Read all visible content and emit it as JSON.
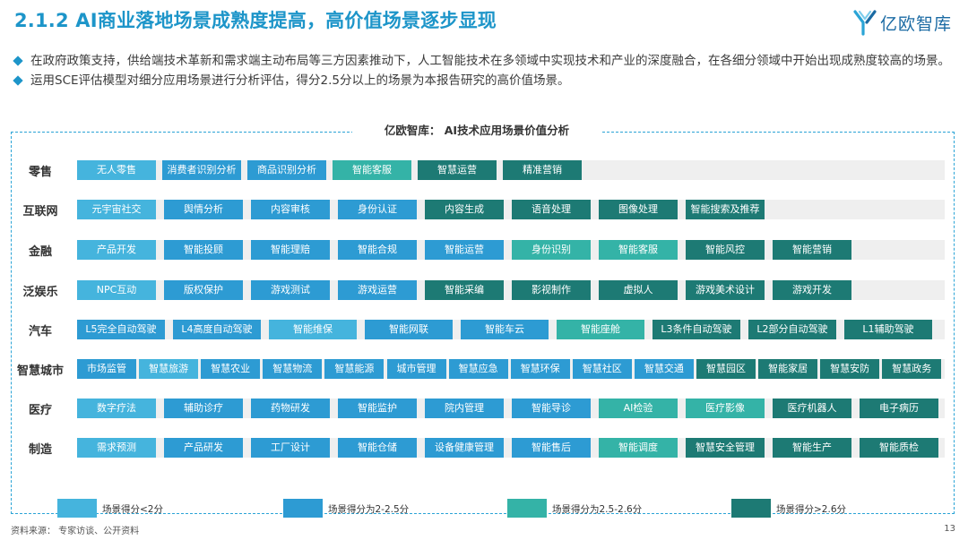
{
  "header": {
    "title": "2.1.2 AI商业落地场景成熟度提高，高价值场景逐步显现",
    "logo_text": "亿欧智库"
  },
  "bullets": [
    "在政府政策支持，供给端技术革新和需求端主动布局等三方因素推动下，人工智能技术在多领域中实现技术和产业的深度融合，在各细分领域中开始出现成熟度较高的场景。",
    "运用SCE评估模型对细分应用场景进行分析评估，得分2.5分以上的场景为本报告研究的高价值场景。"
  ],
  "chart_title": "亿欧智库：  AI技术应用场景价值分析",
  "colors": {
    "t1": "#45b4dd",
    "t2": "#2d9bd3",
    "t3": "#34b3a7",
    "t4": "#1d7a74",
    "accent": "#1d95c9"
  },
  "legend": [
    {
      "label": "场景得分<2分",
      "tier": "t1"
    },
    {
      "label": "场景得分为2-2.5分",
      "tier": "t2"
    },
    {
      "label": "场景得分为2.5-2.6分",
      "tier": "t3"
    },
    {
      "label": "场景得分>2.6分",
      "tier": "t4"
    }
  ],
  "rows": [
    {
      "label": "零售",
      "items": [
        {
          "text": "无人零售",
          "tier": "t1"
        },
        {
          "text": "消费者识别分析",
          "tier": "t2"
        },
        {
          "text": "商品识别分析",
          "tier": "t2"
        },
        {
          "text": "智能客服",
          "tier": "t3"
        },
        {
          "text": "智慧运营",
          "tier": "t4"
        },
        {
          "text": "精准营销",
          "tier": "t4"
        }
      ]
    },
    {
      "label": "互联网",
      "items": [
        {
          "text": "元宇宙社交",
          "tier": "t1"
        },
        {
          "text": "舆情分析",
          "tier": "t2"
        },
        {
          "text": "内容审核",
          "tier": "t2"
        },
        {
          "text": "身份认证",
          "tier": "t2"
        },
        {
          "text": "内容生成",
          "tier": "t4"
        },
        {
          "text": "语音处理",
          "tier": "t4"
        },
        {
          "text": "图像处理",
          "tier": "t4"
        },
        {
          "text": "智能搜索及推荐",
          "tier": "t4"
        }
      ]
    },
    {
      "label": "金融",
      "items": [
        {
          "text": "产品开发",
          "tier": "t1"
        },
        {
          "text": "智能投顾",
          "tier": "t2"
        },
        {
          "text": "智能理赔",
          "tier": "t2"
        },
        {
          "text": "智能合规",
          "tier": "t2"
        },
        {
          "text": "智能运营",
          "tier": "t2"
        },
        {
          "text": "身份识别",
          "tier": "t3"
        },
        {
          "text": "智能客服",
          "tier": "t3"
        },
        {
          "text": "智能风控",
          "tier": "t4"
        },
        {
          "text": "智能营销",
          "tier": "t4"
        }
      ]
    },
    {
      "label": "泛娱乐",
      "items": [
        {
          "text": "NPC互动",
          "tier": "t1"
        },
        {
          "text": "版权保护",
          "tier": "t2"
        },
        {
          "text": "游戏测试",
          "tier": "t2"
        },
        {
          "text": "游戏运营",
          "tier": "t2"
        },
        {
          "text": "智能采编",
          "tier": "t4"
        },
        {
          "text": "影视制作",
          "tier": "t4"
        },
        {
          "text": "虚拟人",
          "tier": "t4"
        },
        {
          "text": "游戏美术设计",
          "tier": "t4"
        },
        {
          "text": "游戏开发",
          "tier": "t4"
        }
      ]
    },
    {
      "label": "汽车",
      "items": [
        {
          "text": "L5完全自动驾驶",
          "tier": "t2"
        },
        {
          "text": "L4高度自动驾驶",
          "tier": "t2"
        },
        {
          "text": "智能维保",
          "tier": "t1"
        },
        {
          "text": "智能网联",
          "tier": "t2"
        },
        {
          "text": "智能车云",
          "tier": "t2"
        },
        {
          "text": "智能座舱",
          "tier": "t3"
        },
        {
          "text": "L3条件自动驾驶",
          "tier": "t4"
        },
        {
          "text": "L2部分自动驾驶",
          "tier": "t4"
        },
        {
          "text": "L1辅助驾驶",
          "tier": "t4"
        }
      ]
    },
    {
      "label": "智慧城市",
      "items": [
        {
          "text": "市场监管",
          "tier": "t2"
        },
        {
          "text": "智慧旅游",
          "tier": "t1"
        },
        {
          "text": "智慧农业",
          "tier": "t2"
        },
        {
          "text": "智慧物流",
          "tier": "t2"
        },
        {
          "text": "智慧能源",
          "tier": "t2"
        },
        {
          "text": "城市管理",
          "tier": "t2"
        },
        {
          "text": "智慧应急",
          "tier": "t2"
        },
        {
          "text": "智慧环保",
          "tier": "t2"
        },
        {
          "text": "智慧社区",
          "tier": "t2"
        },
        {
          "text": "智慧交通",
          "tier": "t2"
        },
        {
          "text": "智慧园区",
          "tier": "t4"
        },
        {
          "text": "智能家居",
          "tier": "t4"
        },
        {
          "text": "智慧安防",
          "tier": "t4"
        },
        {
          "text": "智慧政务",
          "tier": "t4"
        }
      ]
    },
    {
      "label": "医疗",
      "items": [
        {
          "text": "数字疗法",
          "tier": "t1"
        },
        {
          "text": "辅助诊疗",
          "tier": "t2"
        },
        {
          "text": "药物研发",
          "tier": "t2"
        },
        {
          "text": "智能监护",
          "tier": "t2"
        },
        {
          "text": "院内管理",
          "tier": "t2"
        },
        {
          "text": "智能导诊",
          "tier": "t2"
        },
        {
          "text": "AI检验",
          "tier": "t3"
        },
        {
          "text": "医疗影像",
          "tier": "t3"
        },
        {
          "text": "医疗机器人",
          "tier": "t4"
        },
        {
          "text": "电子病历",
          "tier": "t4"
        }
      ]
    },
    {
      "label": "制造",
      "items": [
        {
          "text": "需求预测",
          "tier": "t1"
        },
        {
          "text": "产品研发",
          "tier": "t2"
        },
        {
          "text": "工厂设计",
          "tier": "t2"
        },
        {
          "text": "智能仓储",
          "tier": "t2"
        },
        {
          "text": "设备健康管理",
          "tier": "t2"
        },
        {
          "text": "智能售后",
          "tier": "t2"
        },
        {
          "text": "智能调度",
          "tier": "t3"
        },
        {
          "text": "智慧安全管理",
          "tier": "t4"
        },
        {
          "text": "智能生产",
          "tier": "t4"
        },
        {
          "text": "智能质检",
          "tier": "t4"
        }
      ]
    }
  ],
  "footer": {
    "source": "资料来源：  专家访谈、公开资料",
    "page": "13"
  }
}
